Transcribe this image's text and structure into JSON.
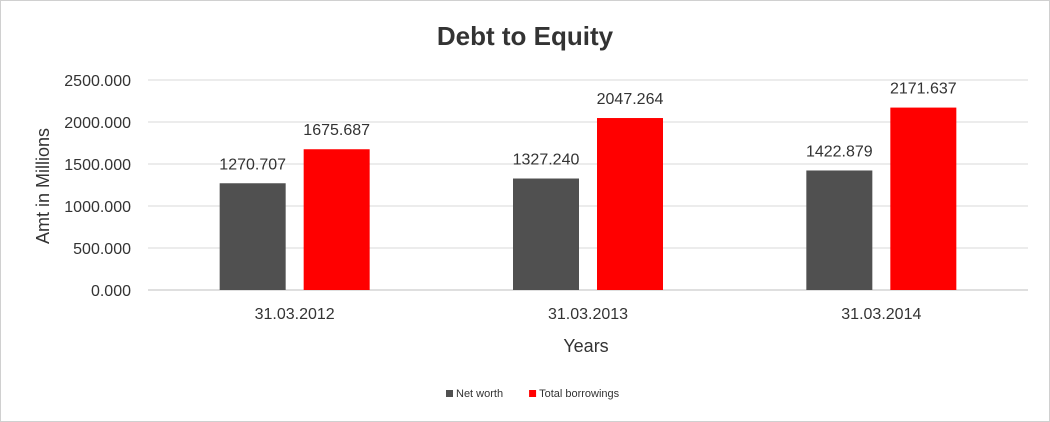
{
  "chart_data": {
    "type": "bar",
    "title": "Debt to Equity",
    "xlabel": "Years",
    "ylabel": "Amt in Millions",
    "categories": [
      "31.03.2012",
      "31.03.2013",
      "31.03.2014"
    ],
    "series": [
      {
        "name": "Net worth",
        "color": "#505050",
        "values": [
          1270.707,
          1327.24,
          1422.879
        ],
        "labels": [
          "1270.707",
          "1327.240",
          "1422.879"
        ]
      },
      {
        "name": "Total borrowings",
        "color": "#ff0000",
        "values": [
          1675.687,
          2047.264,
          2171.637
        ],
        "labels": [
          "1675.687",
          "2047.264",
          "2171.637"
        ]
      }
    ],
    "ylim": [
      0,
      2500
    ],
    "yticks": [
      0,
      500,
      1000,
      1500,
      2000,
      2500
    ],
    "ytick_labels": [
      "0.000",
      "500.000",
      "1000.000",
      "1500.000",
      "2000.000",
      "2500.000"
    ],
    "grid": true,
    "legend_position": "bottom"
  }
}
